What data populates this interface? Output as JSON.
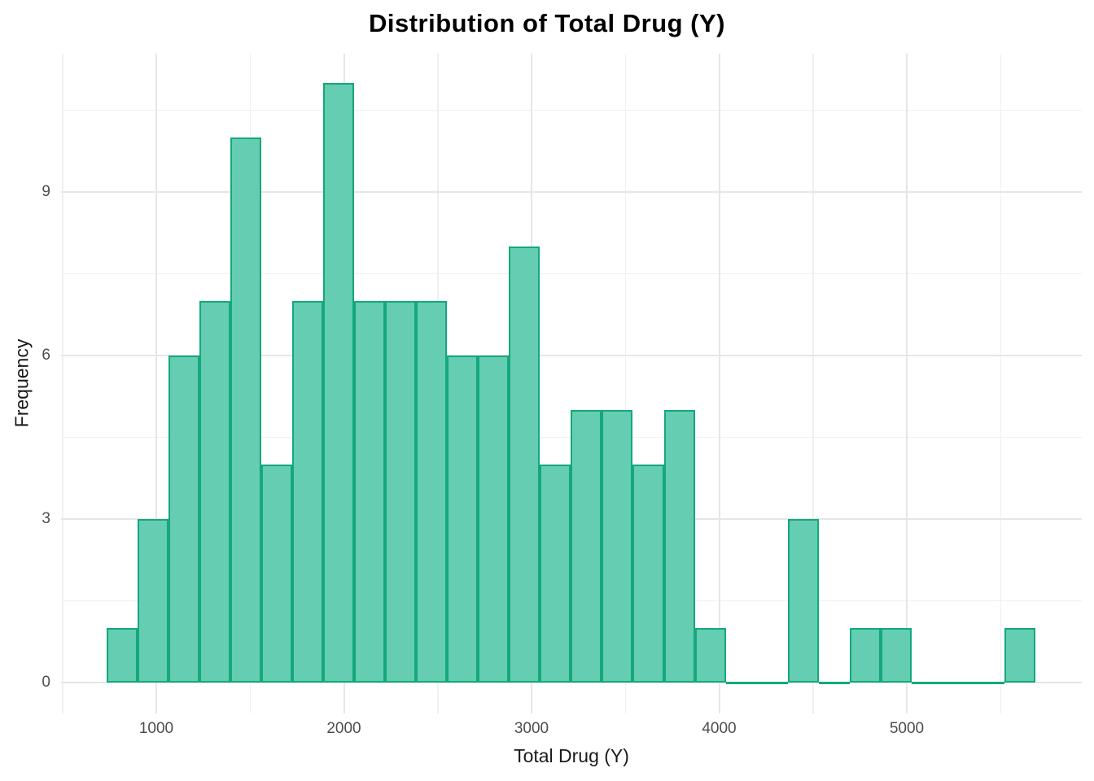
{
  "title": "Distribution of Total Drug (Y)",
  "chart_data": {
    "type": "bar",
    "subtype": "histogram",
    "title": "Distribution of Total Drug (Y)",
    "xlabel": "Total Drug (Y)",
    "ylabel": "Frequency",
    "bin_start": 735,
    "bin_width": 165,
    "n_bins": 30,
    "counts": [
      1,
      3,
      6,
      7,
      10,
      4,
      7,
      11,
      7,
      7,
      7,
      6,
      6,
      8,
      4,
      5,
      5,
      4,
      5,
      1,
      0,
      0,
      3,
      0,
      1,
      1,
      0,
      0,
      0,
      1
    ],
    "total_observations": 120,
    "x_major_ticks": [
      1000,
      2000,
      3000,
      4000,
      5000
    ],
    "x_minor_ticks": [
      500,
      1500,
      2500,
      3500,
      4500,
      5500
    ],
    "y_major_ticks": [
      0,
      3,
      6,
      9
    ],
    "y_minor_ticks": [
      1.5,
      4.5,
      7.5,
      10.5
    ],
    "xlim": [
      490,
      5935
    ],
    "ylim": [
      -0.57,
      11.54
    ],
    "grid": "major+minor",
    "legend": "none",
    "colors": {
      "bar_fill": "#64CDB2",
      "bar_stroke": "#14A87C",
      "grid_major": "#e6e6e6",
      "grid_minor": "#f0f0f0",
      "tick_label": "#4d4d4d",
      "axis_title": "#1a1a1a",
      "title": "#000000",
      "background": "#ffffff"
    }
  }
}
